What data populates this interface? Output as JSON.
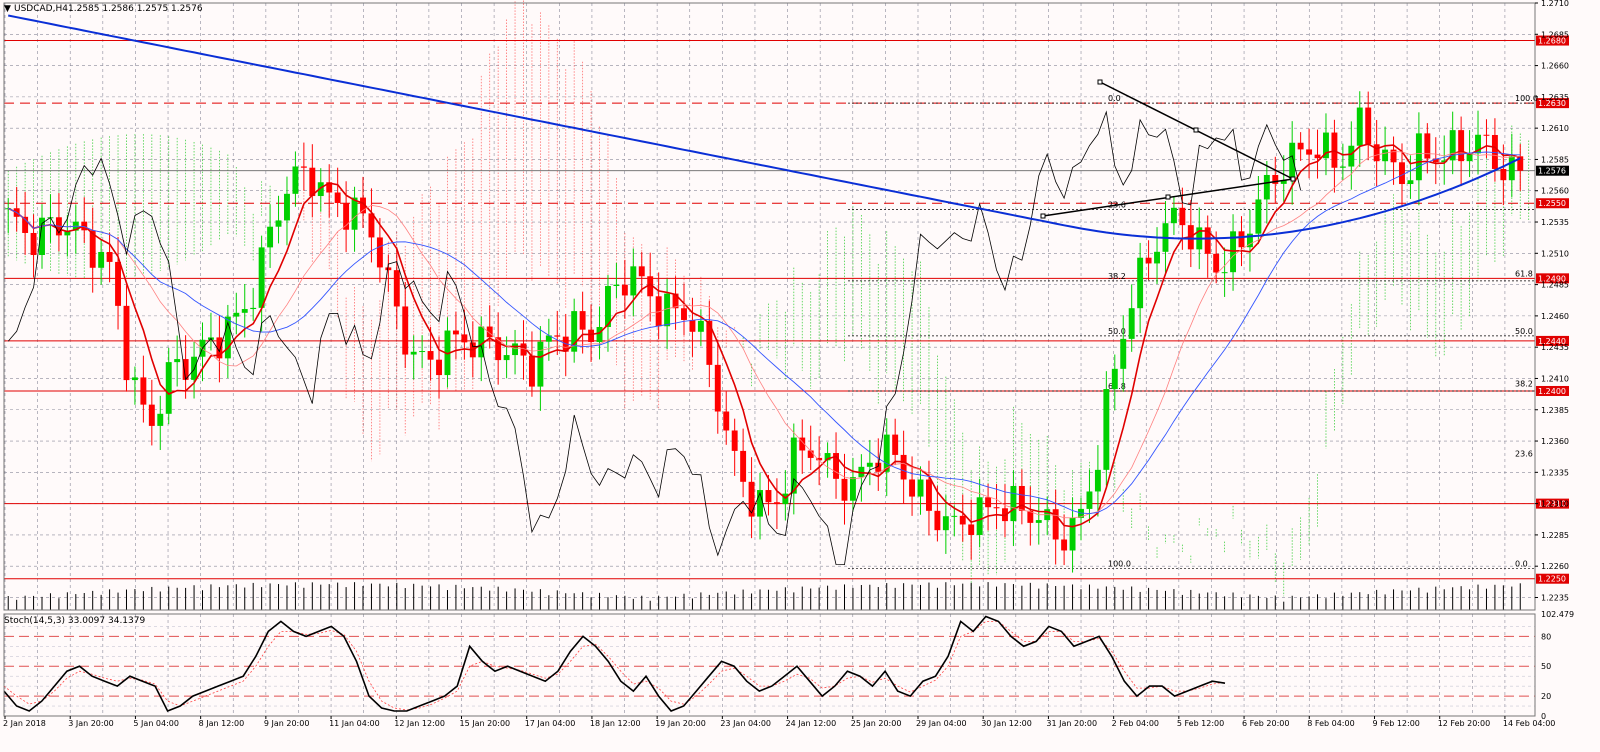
{
  "header": {
    "symbol_label": "USDCAD,H4",
    "ohlc": "1.2585 1.2586 1.2575 1.2576"
  },
  "stoch_label": "Stoch(14,5,3) 33.0097 34.1379",
  "colors": {
    "background": "#fffafa",
    "bull": "#00d000",
    "bear": "#ff0000",
    "ma_red": "#e00000",
    "ma_blue_thick": "#0a2fd6",
    "ma_blue_thin": "#3355ff",
    "black_line": "#000000",
    "cloud_bear": "#ff6060",
    "cloud_bull": "#33cc33",
    "hline": "#e00000",
    "price_tag_bg": "#e00000",
    "current_tag_bg": "#000000"
  },
  "chart_data": [
    {
      "type": "candlestick",
      "title": "USDCAD,H4",
      "x": [
        "2 Jan 2018",
        "3 Jan 20:00",
        "5 Jan 04:00",
        "8 Jan 12:00",
        "9 Jan 20:00",
        "11 Jan 04:00",
        "12 Jan 12:00",
        "15 Jan 20:00",
        "17 Jan 04:00",
        "18 Jan 12:00",
        "19 Jan 20:00",
        "23 Jan 04:00",
        "24 Jan 12:00",
        "25 Jan 20:00",
        "29 Jan 04:00",
        "30 Jan 12:00",
        "31 Jan 20:00",
        "2 Feb 04:00",
        "5 Feb 12:00",
        "6 Feb 20:00",
        "8 Feb 04:00",
        "9 Feb 12:00",
        "12 Feb 20:00",
        "14 Feb 04:00"
      ],
      "ylim": [
        1.2225,
        1.271
      ],
      "yticks": [
        "1.2710",
        "1.2685",
        "1.2660",
        "1.2635",
        "1.2610",
        "1.2585",
        "1.2560",
        "1.2535",
        "1.2510",
        "1.2485",
        "1.2460",
        "1.2435",
        "1.2410",
        "1.2385",
        "1.2360",
        "1.2335",
        "1.2310",
        "1.2285",
        "1.2260",
        "1.2235"
      ],
      "close_path": [
        1.254,
        1.251,
        1.253,
        1.2545,
        1.252,
        1.249,
        1.241,
        1.238,
        1.242,
        1.2415,
        1.243,
        1.246,
        1.248,
        1.252,
        1.256,
        1.258,
        1.256,
        1.254,
        1.252,
        1.248,
        1.244,
        1.242,
        1.243,
        1.244,
        1.245,
        1.243,
        1.241,
        1.244,
        1.246,
        1.245,
        1.247,
        1.249,
        1.248,
        1.247,
        1.245,
        1.24,
        1.235,
        1.232,
        1.23,
        1.234,
        1.236,
        1.234,
        1.232,
        1.234,
        1.235,
        1.233,
        1.23,
        1.228,
        1.23,
        1.232,
        1.231,
        1.229,
        1.228,
        1.23,
        1.235,
        1.242,
        1.248,
        1.253,
        1.255,
        1.251,
        1.249,
        1.252,
        1.256,
        1.257,
        1.258,
        1.26,
        1.259,
        1.261,
        1.258,
        1.257,
        1.26,
        1.259,
        1.258,
        1.26,
        1.259,
        1.2576
      ],
      "current_price": 1.2576,
      "horizontal_levels": [
        {
          "price": 1.268,
          "label": "1.2680",
          "style": "solid"
        },
        {
          "price": 1.263,
          "label": "1.2630",
          "style": "dashed"
        },
        {
          "price": 1.255,
          "label": "1.2550",
          "style": "dashed"
        },
        {
          "price": 1.249,
          "label": "1.2490",
          "style": "solid"
        },
        {
          "price": 1.244,
          "label": "1.2440",
          "style": "solid"
        },
        {
          "price": 1.24,
          "label": "1.2400",
          "style": "solid"
        },
        {
          "price": 1.231,
          "label": "1.2310",
          "style": "solid"
        },
        {
          "price": 1.225,
          "label": "1.2250",
          "style": "solid"
        }
      ],
      "fibo_left": [
        {
          "price": 1.263,
          "label": "0.0"
        },
        {
          "price": 1.2545,
          "label": "23.6"
        },
        {
          "price": 1.2488,
          "label": "38.2"
        },
        {
          "price": 1.2444,
          "label": "50.0"
        },
        {
          "price": 1.24,
          "label": "61.8"
        },
        {
          "price": 1.2258,
          "label": "100.0"
        }
      ],
      "fibo_right": [
        {
          "price": 1.263,
          "label": "100.0"
        },
        {
          "price": 1.249,
          "label": "61.8"
        },
        {
          "price": 1.2444,
          "label": "50.0"
        },
        {
          "price": 1.2402,
          "label": "38.2"
        },
        {
          "price": 1.2346,
          "label": "23.6"
        },
        {
          "price": 1.2258,
          "label": "0.0"
        }
      ]
    },
    {
      "type": "line",
      "title": "Stoch(14,5,3) 33.0097 34.1379",
      "ylim": [
        0,
        102.479
      ],
      "yticks": [
        "102.479",
        "80",
        "50",
        "20",
        "0"
      ],
      "levels": [
        80,
        50,
        20
      ],
      "main": [
        25,
        10,
        5,
        15,
        30,
        45,
        50,
        40,
        35,
        30,
        40,
        35,
        30,
        5,
        10,
        20,
        25,
        30,
        35,
        40,
        60,
        85,
        95,
        85,
        80,
        85,
        90,
        80,
        55,
        20,
        8,
        5,
        5,
        10,
        15,
        20,
        30,
        70,
        55,
        45,
        50,
        45,
        40,
        35,
        45,
        65,
        80,
        70,
        55,
        35,
        25,
        40,
        20,
        5,
        10,
        25,
        40,
        55,
        50,
        35,
        25,
        30,
        40,
        50,
        35,
        20,
        30,
        45,
        40,
        30,
        45,
        25,
        20,
        35,
        40,
        60,
        95,
        85,
        100,
        95,
        80,
        70,
        75,
        90,
        85,
        70,
        75,
        80,
        60,
        35,
        20,
        30,
        30,
        20,
        25,
        30,
        35,
        33
      ],
      "signal": [
        30,
        20,
        12,
        15,
        25,
        38,
        45,
        42,
        38,
        35,
        38,
        36,
        32,
        15,
        10,
        15,
        20,
        25,
        30,
        35,
        50,
        70,
        85,
        85,
        82,
        83,
        86,
        82,
        65,
        35,
        15,
        8,
        6,
        8,
        12,
        18,
        25,
        50,
        55,
        50,
        48,
        46,
        42,
        38,
        42,
        55,
        70,
        72,
        60,
        45,
        32,
        35,
        28,
        15,
        12,
        20,
        32,
        45,
        48,
        40,
        30,
        30,
        35,
        42,
        38,
        28,
        30,
        38,
        40,
        34,
        38,
        30,
        24,
        30,
        36,
        50,
        80,
        85,
        95,
        95,
        85,
        75,
        75,
        85,
        85,
        75,
        75,
        78,
        65,
        45,
        28,
        28,
        30,
        25,
        25,
        28,
        32,
        34
      ]
    }
  ]
}
